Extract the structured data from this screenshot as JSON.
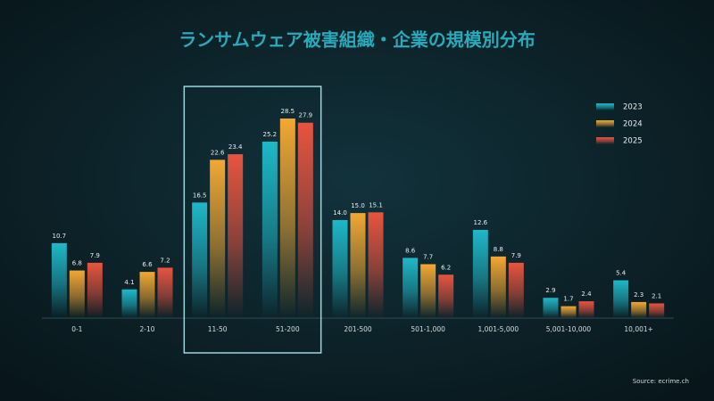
{
  "chart_data": {
    "type": "bar",
    "title": "ランサムウェア被害組織・企業の規模別分布",
    "source": "Source: ecrime.ch",
    "categories": [
      "0-1",
      "2-10",
      "11-50",
      "51-200",
      "201-500",
      "501-1,000",
      "1,001-5,000",
      "5,001-10,000",
      "10,001+"
    ],
    "series": [
      {
        "name": "2023",
        "color": "#1fb8c8",
        "values": [
          10.7,
          4.1,
          16.5,
          25.2,
          14.0,
          8.6,
          12.6,
          2.9,
          5.4
        ],
        "value_labels": [
          "10.7",
          "4.1",
          "16.5",
          "25.2",
          "14.0",
          "8.6",
          "12.6",
          "2.9",
          "5.4"
        ]
      },
      {
        "name": "2024",
        "color": "#f2a833",
        "values": [
          6.8,
          6.6,
          22.6,
          28.5,
          15.0,
          7.7,
          8.8,
          1.7,
          2.3
        ],
        "value_labels": [
          "6.8",
          "6.6",
          "22.6",
          "28.5",
          "15.0",
          "7.7",
          "8.8",
          "1.7",
          "2.3"
        ]
      },
      {
        "name": "2025",
        "color": "#e8543f",
        "values": [
          7.9,
          7.2,
          23.4,
          27.9,
          15.1,
          6.2,
          7.9,
          2.4,
          2.1
        ],
        "value_labels": [
          "7.9",
          "7.2",
          "23.4",
          "27.9",
          "15.1",
          "6.2",
          "7.9",
          "2.4",
          "2.1"
        ]
      }
    ],
    "highlight": [
      2,
      3
    ],
    "legend": "top-right"
  }
}
